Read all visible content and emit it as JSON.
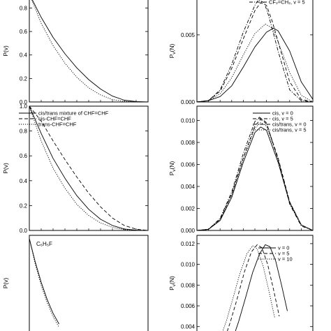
{
  "chart_data": [
    {
      "type": "line",
      "panel": "top-left",
      "title": "",
      "xlabel": "",
      "ylabel": "P(v)",
      "y_ticks": [
        "0.0",
        "0.2",
        "0.4",
        "0.6",
        "0.8"
      ],
      "xlim": [
        0,
        10
      ],
      "ylim": [
        0,
        0.88
      ],
      "legend": [],
      "series": [
        {
          "style": "solid",
          "x": [
            0,
            1,
            2,
            3,
            4,
            5,
            6,
            7,
            8,
            9,
            10
          ],
          "y": [
            0.92,
            0.72,
            0.55,
            0.41,
            0.29,
            0.19,
            0.11,
            0.05,
            0.015,
            0.003,
            0.0
          ]
        },
        {
          "style": "dotted",
          "x": [
            0,
            1,
            2,
            3,
            4,
            5,
            6,
            7,
            8,
            9,
            10
          ],
          "y": [
            0.92,
            0.67,
            0.48,
            0.33,
            0.21,
            0.12,
            0.06,
            0.02,
            0.005,
            0.001,
            0.0
          ]
        }
      ]
    },
    {
      "type": "line",
      "panel": "top-right",
      "title": "",
      "xlabel": "",
      "ylabel": "P_v(N)",
      "y_ticks": [
        "0.000",
        "0.005"
      ],
      "xlim": [
        0,
        10
      ],
      "ylim": [
        0,
        0.0077
      ],
      "legend": [
        {
          "label": "CF₂=CH₂, v = 5",
          "style": "dashdot"
        }
      ],
      "series": [
        {
          "style": "solid",
          "x": [
            0,
            1,
            2,
            3,
            4,
            5,
            6,
            6.6,
            7,
            8,
            9,
            10
          ],
          "y": [
            0.0,
            0.0001,
            0.0004,
            0.0012,
            0.0026,
            0.0041,
            0.0052,
            0.0055,
            0.0053,
            0.0038,
            0.0015,
            0.0002
          ]
        },
        {
          "style": "dotted",
          "x": [
            0,
            1,
            2,
            3,
            4,
            5,
            5.9,
            6.5,
            7,
            8,
            9,
            10
          ],
          "y": [
            0.0,
            0.0001,
            0.0006,
            0.0018,
            0.0035,
            0.0051,
            0.0058,
            0.0055,
            0.0045,
            0.0022,
            0.0005,
            0.0
          ]
        },
        {
          "style": "dashed",
          "x": [
            0,
            1,
            2,
            3,
            4,
            5,
            5.5,
            6,
            6.5,
            7,
            8,
            9,
            10
          ],
          "y": [
            0.0,
            0.0001,
            0.0008,
            0.0025,
            0.0047,
            0.0068,
            0.0074,
            0.0072,
            0.006,
            0.0045,
            0.0015,
            0.0002,
            0.0
          ]
        },
        {
          "style": "dashdot",
          "x": [
            0,
            1,
            2,
            3,
            4,
            5,
            5.3,
            5.8,
            6.2,
            7,
            8,
            9,
            10
          ],
          "y": [
            0.0,
            0.0001,
            0.0009,
            0.0028,
            0.0052,
            0.0072,
            0.0076,
            0.0074,
            0.0064,
            0.0038,
            0.0009,
            0.0001,
            0.0
          ]
        }
      ]
    },
    {
      "type": "line",
      "panel": "middle-left",
      "title": "",
      "xlabel": "",
      "ylabel": "P(v)",
      "y_ticks": [
        "0.0",
        "0.2",
        "0.4",
        "0.6",
        "0.8",
        "1.0"
      ],
      "xlim": [
        0,
        10
      ],
      "ylim": [
        0,
        1.0
      ],
      "legend": [
        {
          "label": "cis/trans mixture of CHF=CHF",
          "style": "solid"
        },
        {
          "label": "cis-CHF=CHF",
          "style": "dashed"
        },
        {
          "label": "trans-CHF=CHF",
          "style": "dotted"
        }
      ],
      "series": [
        {
          "style": "solid",
          "x": [
            0,
            1,
            2,
            3,
            4,
            5,
            6,
            7,
            8,
            9,
            10
          ],
          "y": [
            1.0,
            0.78,
            0.58,
            0.42,
            0.28,
            0.17,
            0.09,
            0.04,
            0.012,
            0.002,
            0.0
          ]
        },
        {
          "style": "dashed",
          "x": [
            0,
            1,
            2,
            3,
            4,
            5,
            6,
            7,
            8,
            9,
            10
          ],
          "y": [
            1.0,
            0.88,
            0.72,
            0.57,
            0.43,
            0.3,
            0.19,
            0.1,
            0.04,
            0.01,
            0.0
          ]
        },
        {
          "style": "dotted",
          "x": [
            0,
            1,
            2,
            3,
            4,
            5,
            6,
            7,
            8,
            9,
            10
          ],
          "y": [
            1.0,
            0.72,
            0.5,
            0.34,
            0.21,
            0.12,
            0.06,
            0.025,
            0.007,
            0.001,
            0.0
          ]
        }
      ]
    },
    {
      "type": "line",
      "panel": "middle-right",
      "title": "",
      "xlabel": "",
      "ylabel": "P_v(N)",
      "y_ticks": [
        "0.000",
        "0.002",
        "0.004",
        "0.006",
        "0.008",
        "0.010"
      ],
      "xlim": [
        0,
        10
      ],
      "ylim": [
        0,
        0.0113
      ],
      "legend": [
        {
          "label": "cis, v = 0",
          "style": "solid"
        },
        {
          "label": "cis, v = 5",
          "style": "dashed"
        },
        {
          "label": "cis/trans, v = 0",
          "style": "dashdot"
        },
        {
          "label": "cis/trans, v = 5",
          "style": "dotted"
        }
      ],
      "series": [
        {
          "style": "solid",
          "x": [
            0,
            1,
            2,
            3,
            4,
            5,
            5.5,
            6,
            7,
            8,
            9,
            10
          ],
          "y": [
            0.0,
            0.0001,
            0.0009,
            0.003,
            0.0062,
            0.0089,
            0.0094,
            0.0091,
            0.0062,
            0.0025,
            0.0005,
            0.0
          ]
        },
        {
          "style": "dashed",
          "x": [
            0,
            1,
            2,
            3,
            4,
            5,
            5.5,
            6,
            7,
            8,
            9,
            10
          ],
          "y": [
            0.0,
            0.0001,
            0.001,
            0.0033,
            0.0066,
            0.0095,
            0.0101,
            0.0097,
            0.0066,
            0.0026,
            0.0005,
            0.0
          ]
        },
        {
          "style": "dashdot",
          "x": [
            0,
            1,
            2,
            3,
            4,
            5,
            5.4,
            6,
            7,
            8,
            9,
            10
          ],
          "y": [
            0.0,
            0.0001,
            0.0011,
            0.0035,
            0.007,
            0.0099,
            0.0103,
            0.0098,
            0.0064,
            0.0024,
            0.0004,
            0.0
          ]
        },
        {
          "style": "dotted",
          "x": [
            0,
            1,
            2,
            3,
            4,
            5,
            5.5,
            6,
            7,
            8,
            9,
            10
          ],
          "y": [
            0.0,
            0.0001,
            0.001,
            0.0032,
            0.0065,
            0.0093,
            0.0098,
            0.0095,
            0.0065,
            0.0026,
            0.0005,
            0.0
          ]
        }
      ]
    },
    {
      "type": "line",
      "panel": "bottom-left",
      "title": "",
      "xlabel": "",
      "ylabel": "P(v)",
      "annotation": "C₆H₅F",
      "y_ticks": [],
      "xlim": [
        0,
        10
      ],
      "ylim": [
        0,
        1.0
      ],
      "legend": [],
      "series": [
        {
          "style": "solid",
          "x": [
            0,
            0.5,
            1,
            1.5,
            2,
            2.5
          ],
          "y": [
            0.97,
            0.75,
            0.56,
            0.4,
            0.27,
            0.17
          ]
        },
        {
          "style": "dotted",
          "x": [
            0,
            0.5,
            1,
            1.5,
            2,
            2.5
          ],
          "y": [
            0.97,
            0.73,
            0.53,
            0.37,
            0.24,
            0.14
          ]
        }
      ]
    },
    {
      "type": "line",
      "panel": "bottom-right",
      "title": "",
      "xlabel": "",
      "ylabel": "P_v(N)",
      "y_ticks": [
        "0.004",
        "0.006",
        "0.008",
        "0.010",
        "0.012"
      ],
      "xlim": [
        0,
        10
      ],
      "ylim": [
        0.0025,
        0.0128
      ],
      "legend": [
        {
          "label": "v = 0",
          "style": "solid"
        },
        {
          "label": "v = 5",
          "style": "dashed"
        },
        {
          "label": "v = 10",
          "style": "dotted"
        }
      ],
      "series": [
        {
          "style": "solid",
          "x": [
            3.0,
            3.6,
            4.2,
            4.8,
            5.4,
            5.9,
            6.3,
            6.8,
            7.3,
            7.8
          ],
          "y": [
            0.0025,
            0.0045,
            0.0068,
            0.0092,
            0.011,
            0.0119,
            0.0117,
            0.0103,
            0.008,
            0.0055
          ]
        },
        {
          "style": "dashed",
          "x": [
            2.3,
            2.9,
            3.5,
            4.1,
            4.7,
            5.2,
            5.6,
            6.1,
            6.6,
            7.1
          ],
          "y": [
            0.0025,
            0.0045,
            0.0068,
            0.0093,
            0.0112,
            0.0119,
            0.0116,
            0.01,
            0.0076,
            0.005
          ]
        },
        {
          "style": "dotted",
          "x": [
            1.9,
            2.5,
            3.1,
            3.7,
            4.3,
            4.8,
            5.2,
            5.7,
            6.2,
            6.7
          ],
          "y": [
            0.0025,
            0.0044,
            0.0067,
            0.0091,
            0.011,
            0.0118,
            0.0115,
            0.0099,
            0.0075,
            0.0049
          ]
        }
      ]
    }
  ]
}
